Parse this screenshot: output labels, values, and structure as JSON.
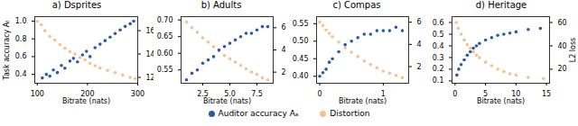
{
  "chart_data": [
    {
      "type": "scatter",
      "title": "a) Dsprites",
      "xlabel": "Bitrate (nats)",
      "ylabel": "Task accuracy Aₜ",
      "xlim": [
        95,
        300
      ],
      "xticks": [
        100,
        200,
        300
      ],
      "ylim": [
        0.3,
        1.05
      ],
      "yticks": [
        0.4,
        0.6,
        0.8,
        {
          "value": 1.0,
          "label": "1.0"
        }
      ],
      "y2lim": [
        11.5,
        17.2
      ],
      "y2ticks": [
        12,
        14,
        16
      ],
      "series": [
        {
          "name": "Distortion",
          "color": "#f5c18c",
          "axis": "y2",
          "x": [
            100,
            108,
            115,
            125,
            135,
            145,
            155,
            165,
            175,
            185,
            195,
            205,
            215,
            225,
            240,
            255,
            270,
            285,
            295
          ],
          "values": [
            16.8,
            16.5,
            16.0,
            15.5,
            15.2,
            14.8,
            14.5,
            14.2,
            14.0,
            13.7,
            13.5,
            13.2,
            13.0,
            12.8,
            12.6,
            12.4,
            12.2,
            12.0,
            11.9
          ]
        },
        {
          "name": "Auditor accuracy Aₐ",
          "color": "#2b5ba8",
          "x": [
            110,
            118,
            125,
            132,
            140,
            148,
            155,
            165,
            172,
            180,
            190,
            198,
            205,
            215,
            225,
            235,
            245,
            255,
            265,
            275,
            285,
            292
          ],
          "values": [
            0.36,
            0.4,
            0.38,
            0.45,
            0.42,
            0.5,
            0.47,
            0.55,
            0.58,
            0.54,
            0.62,
            0.66,
            0.6,
            0.7,
            0.74,
            0.78,
            0.82,
            0.86,
            0.9,
            0.94,
            0.97,
            1.0
          ]
        }
      ]
    },
    {
      "type": "scatter",
      "title": "b) Adults",
      "xlabel": "Bitrate (nats)",
      "xlim": [
        0.5,
        9
      ],
      "xticks": [
        7.5,
        {
          "value": 2.5,
          "label": "2.5"
        },
        {
          "value": 5.0,
          "label": "5.0"
        }
      ],
      "ylim": [
        0.51,
        0.71
      ],
      "yticks": [
        0.55,
        {
          "value": 0.6,
          "label": "0.60"
        },
        0.65,
        {
          "value": 0.7,
          "label": "0.70"
        }
      ],
      "y2lim": [
        1,
        7
      ],
      "y2ticks": [
        2,
        4,
        6
      ],
      "series": [
        {
          "name": "Distortion",
          "color": "#f5c18c",
          "axis": "y2",
          "x": [
            1.0,
            1.5,
            2.0,
            2.5,
            3.0,
            3.5,
            4.0,
            4.5,
            5.0,
            5.5,
            6.0,
            6.5,
            7.0,
            7.5,
            8.0,
            8.5
          ],
          "values": [
            6.5,
            6.0,
            5.6,
            5.1,
            4.7,
            4.3,
            3.9,
            3.5,
            3.2,
            2.9,
            2.6,
            2.3,
            2.0,
            1.8,
            1.5,
            1.3
          ]
        },
        {
          "name": "Auditor accuracy Aₐ",
          "color": "#2b5ba8",
          "x": [
            1.0,
            1.5,
            2.0,
            2.5,
            3.0,
            3.5,
            4.0,
            4.5,
            5.0,
            5.5,
            6.0,
            6.5,
            7.0,
            7.5,
            8.0,
            8.5
          ],
          "values": [
            0.52,
            0.54,
            0.55,
            0.57,
            0.58,
            0.59,
            0.61,
            0.62,
            0.63,
            0.64,
            0.65,
            0.66,
            0.66,
            0.67,
            0.68,
            0.68
          ]
        }
      ]
    },
    {
      "type": "scatter",
      "title": "c) Compas",
      "xlabel": "Bitrate (nats)",
      "xlim": [
        -0.05,
        1.4
      ],
      "xticks": [
        0,
        1
      ],
      "ylim": [
        0.38,
        0.57
      ],
      "yticks": [
        {
          "value": 0.4,
          "label": "0.40"
        },
        0.45,
        {
          "value": 0.5,
          "label": "0.50"
        },
        0.55
      ],
      "y2lim": [
        0.5,
        6.5
      ],
      "y2ticks": [
        2,
        4,
        6
      ],
      "series": [
        {
          "name": "Distortion",
          "color": "#f5c18c",
          "axis": "y2",
          "x": [
            0.0,
            0.05,
            0.1,
            0.15,
            0.2,
            0.3,
            0.4,
            0.5,
            0.6,
            0.7,
            0.8,
            0.9,
            1.0,
            1.1,
            1.2,
            1.3
          ],
          "values": [
            6.0,
            5.7,
            5.3,
            5.0,
            4.7,
            4.2,
            3.7,
            3.3,
            2.9,
            2.5,
            2.2,
            1.9,
            1.6,
            1.4,
            1.2,
            1.0
          ]
        },
        {
          "name": "Auditor accuracy Aₐ",
          "color": "#2b5ba8",
          "x": [
            0.0,
            0.05,
            0.1,
            0.15,
            0.2,
            0.3,
            0.4,
            0.5,
            0.6,
            0.7,
            0.8,
            0.9,
            1.0,
            1.1,
            1.2,
            1.3
          ],
          "values": [
            0.4,
            0.41,
            0.42,
            0.44,
            0.45,
            0.47,
            0.49,
            0.5,
            0.51,
            0.52,
            0.52,
            0.53,
            0.53,
            0.53,
            0.54,
            0.53
          ]
        }
      ]
    },
    {
      "type": "scatter",
      "title": "d) Heritage",
      "xlabel": "Bitrate (nats)",
      "y2label": "L2 loss",
      "xlim": [
        -0.5,
        15.5
      ],
      "xticks": [
        0,
        5,
        10,
        15
      ],
      "ylim": [
        0.08,
        0.65
      ],
      "yticks": [
        0.1,
        0.2,
        0.3,
        0.4,
        0.5,
        0.6
      ],
      "y2lim": [
        8,
        65
      ],
      "y2ticks": [
        20,
        40,
        60
      ],
      "series": [
        {
          "name": "Distortion",
          "color": "#f5c18c",
          "axis": "y2",
          "x": [
            0.2,
            0.5,
            1.0,
            1.5,
            2,
            2.5,
            3,
            3.5,
            4,
            5,
            6,
            7,
            8,
            9,
            10,
            12,
            14.5
          ],
          "values": [
            60,
            55,
            50,
            45,
            41,
            38,
            35,
            32,
            30,
            26,
            23,
            20,
            18,
            16,
            15,
            13,
            12
          ]
        },
        {
          "name": "Auditor accuracy Aₐ",
          "color": "#2b5ba8",
          "x": [
            0.3,
            0.6,
            1.0,
            1.5,
            2,
            2.5,
            3,
            3.5,
            4,
            5,
            6,
            7,
            8,
            9,
            10,
            12,
            14
          ],
          "values": [
            0.15,
            0.2,
            0.24,
            0.28,
            0.32,
            0.35,
            0.38,
            0.4,
            0.42,
            0.45,
            0.47,
            0.49,
            0.5,
            0.51,
            0.52,
            0.54,
            0.55
          ]
        }
      ]
    }
  ]
}
